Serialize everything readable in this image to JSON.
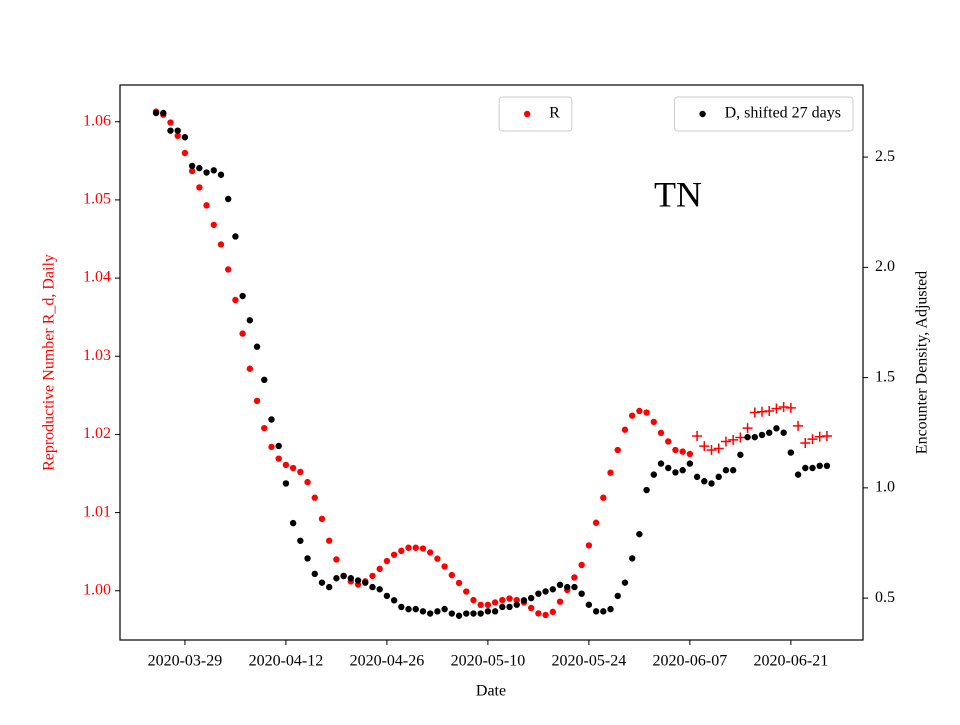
{
  "chart_data": {
    "type": "scatter",
    "annotation": "TN",
    "x_label": "Date",
    "y_label": "Reproductive Number R_d, Daily",
    "y2_label": "Encounter Density, Adjusted",
    "x": [
      "2020-03-25",
      "2020-03-26",
      "2020-03-27",
      "2020-03-28",
      "2020-03-29",
      "2020-03-30",
      "2020-03-31",
      "2020-04-01",
      "2020-04-02",
      "2020-04-03",
      "2020-04-04",
      "2020-04-05",
      "2020-04-06",
      "2020-04-07",
      "2020-04-08",
      "2020-04-09",
      "2020-04-10",
      "2020-04-11",
      "2020-04-12",
      "2020-04-13",
      "2020-04-14",
      "2020-04-15",
      "2020-04-16",
      "2020-04-17",
      "2020-04-18",
      "2020-04-19",
      "2020-04-20",
      "2020-04-21",
      "2020-04-22",
      "2020-04-23",
      "2020-04-24",
      "2020-04-25",
      "2020-04-26",
      "2020-04-27",
      "2020-04-28",
      "2020-04-29",
      "2020-04-30",
      "2020-05-01",
      "2020-05-02",
      "2020-05-03",
      "2020-05-04",
      "2020-05-05",
      "2020-05-06",
      "2020-05-07",
      "2020-05-08",
      "2020-05-09",
      "2020-05-10",
      "2020-05-11",
      "2020-05-12",
      "2020-05-13",
      "2020-05-14",
      "2020-05-15",
      "2020-05-16",
      "2020-05-17",
      "2020-05-18",
      "2020-05-19",
      "2020-05-20",
      "2020-05-21",
      "2020-05-22",
      "2020-05-23",
      "2020-05-24",
      "2020-05-25",
      "2020-05-26",
      "2020-05-27",
      "2020-05-28",
      "2020-05-29",
      "2020-05-30",
      "2020-05-31",
      "2020-06-01",
      "2020-06-02",
      "2020-06-03",
      "2020-06-04",
      "2020-06-05",
      "2020-06-06",
      "2020-06-07",
      "2020-06-08",
      "2020-06-09",
      "2020-06-10",
      "2020-06-11",
      "2020-06-12",
      "2020-06-13",
      "2020-06-14",
      "2020-06-15",
      "2020-06-16",
      "2020-06-17",
      "2020-06-18",
      "2020-06-19",
      "2020-06-20",
      "2020-06-21",
      "2020-06-22",
      "2020-06-23",
      "2020-06-24",
      "2020-06-25",
      "2020-06-26"
    ],
    "xlim": [
      "2020-03-20",
      "2020-07-01"
    ],
    "xticks": [
      "2020-03-29",
      "2020-04-12",
      "2020-04-26",
      "2020-05-10",
      "2020-05-24",
      "2020-06-07",
      "2020-06-21"
    ],
    "ylim": [
      0.9937,
      1.0647
    ],
    "yticks": [
      {
        "value": 1,
        "label": "1.00"
      },
      {
        "value": 1.01,
        "label": "1.01"
      },
      {
        "value": 1.02,
        "label": "1.02"
      },
      {
        "value": 1.03,
        "label": "1.03"
      },
      {
        "value": 1.04,
        "label": "1.04"
      },
      {
        "value": 1.05,
        "label": "1.05"
      },
      {
        "value": 1.06,
        "label": "1.06"
      }
    ],
    "y2lim": [
      0.31,
      2.827
    ],
    "y2ticks": [
      0.5,
      {
        "value": 1,
        "label": "1.0"
      },
      1.5,
      {
        "value": 2,
        "label": "2.0"
      },
      2.5
    ],
    "y_color": "#ff0000",
    "series": [
      {
        "name": "R",
        "color": "#ff0000",
        "marker": "dot",
        "legend_loc": "upper center",
        "values": [
          1.0613,
          1.0609,
          1.0599,
          1.0582,
          1.056,
          1.0537,
          1.0516,
          1.0493,
          1.0468,
          1.0443,
          1.0411,
          1.0372,
          1.0329,
          1.0284,
          1.0243,
          1.0208,
          1.0184,
          1.0169,
          1.0161,
          1.0157,
          1.0152,
          1.0139,
          1.0119,
          1.0092,
          1.0064,
          1.004,
          1.0019,
          1.0012,
          1.0008,
          1.0012,
          1.0019,
          1.0028,
          1.0038,
          1.0046,
          1.0051,
          1.0055,
          1.0055,
          1.0054,
          1.0049,
          1.0041,
          1.0031,
          1.002,
          1.001,
          0.9999,
          0.9988,
          0.9982,
          0.9982,
          0.9985,
          0.9988,
          0.999,
          0.9988,
          0.9985,
          0.9978,
          0.9971,
          0.9969,
          0.9973,
          0.9986,
          1.0001,
          1.0017,
          1.0033,
          1.0058,
          1.0087,
          1.0119,
          1.0151,
          1.018,
          1.0206,
          1.0224,
          1.023,
          1.0228,
          1.0216,
          1.0202,
          1.0191,
          1.018,
          1.0178,
          1.0175,
          null,
          null,
          null,
          null,
          null,
          null,
          null,
          null,
          null,
          null,
          null,
          null,
          null,
          null,
          null,
          null,
          null,
          null,
          null
        ]
      },
      {
        "color": "#ff0000",
        "marker": "plus",
        "values": [
          null,
          null,
          null,
          null,
          null,
          null,
          null,
          null,
          null,
          null,
          null,
          null,
          null,
          null,
          null,
          null,
          null,
          null,
          null,
          null,
          null,
          null,
          null,
          null,
          null,
          null,
          null,
          null,
          null,
          null,
          null,
          null,
          null,
          null,
          null,
          null,
          null,
          null,
          null,
          null,
          null,
          null,
          null,
          null,
          null,
          null,
          null,
          null,
          null,
          null,
          null,
          null,
          null,
          null,
          null,
          null,
          null,
          null,
          null,
          null,
          null,
          null,
          null,
          null,
          null,
          null,
          null,
          null,
          null,
          null,
          null,
          null,
          null,
          null,
          null,
          1.0198,
          1.0185,
          1.018,
          1.0182,
          1.0191,
          1.0193,
          1.0196,
          1.0208,
          1.0228,
          1.0229,
          1.023,
          1.0233,
          1.0235,
          1.0234,
          1.0211,
          1.0189,
          1.0194,
          1.0197,
          1.0198
        ]
      },
      {
        "name": "D, shifted 27 days",
        "color": "#000000",
        "marker": "dot",
        "axis": "y2",
        "legend_loc": "upper right",
        "values": [
          2.7,
          2.7,
          2.62,
          2.62,
          2.59,
          2.46,
          2.45,
          2.43,
          2.44,
          2.42,
          2.31,
          2.14,
          1.87,
          1.76,
          1.64,
          1.49,
          1.31,
          1.19,
          1.02,
          0.84,
          0.76,
          0.68,
          0.61,
          0.57,
          0.55,
          0.59,
          0.6,
          0.59,
          0.58,
          0.57,
          0.55,
          0.54,
          0.51,
          0.49,
          0.46,
          0.45,
          0.45,
          0.44,
          0.43,
          0.44,
          0.45,
          0.43,
          0.42,
          0.43,
          0.43,
          0.43,
          0.44,
          0.44,
          0.46,
          0.46,
          0.47,
          0.49,
          0.5,
          0.52,
          0.53,
          0.54,
          0.56,
          0.55,
          0.55,
          0.52,
          0.47,
          0.44,
          0.44,
          0.45,
          0.51,
          0.57,
          0.68,
          0.79,
          0.99,
          1.06,
          1.11,
          1.09,
          1.07,
          1.08,
          1.11,
          1.05,
          1.03,
          1.02,
          1.05,
          1.08,
          1.08,
          1.15,
          1.23,
          1.23,
          1.24,
          1.25,
          1.27,
          1.25,
          1.16,
          1.06,
          1.09,
          1.09,
          1.1,
          1.1
        ]
      }
    ]
  }
}
